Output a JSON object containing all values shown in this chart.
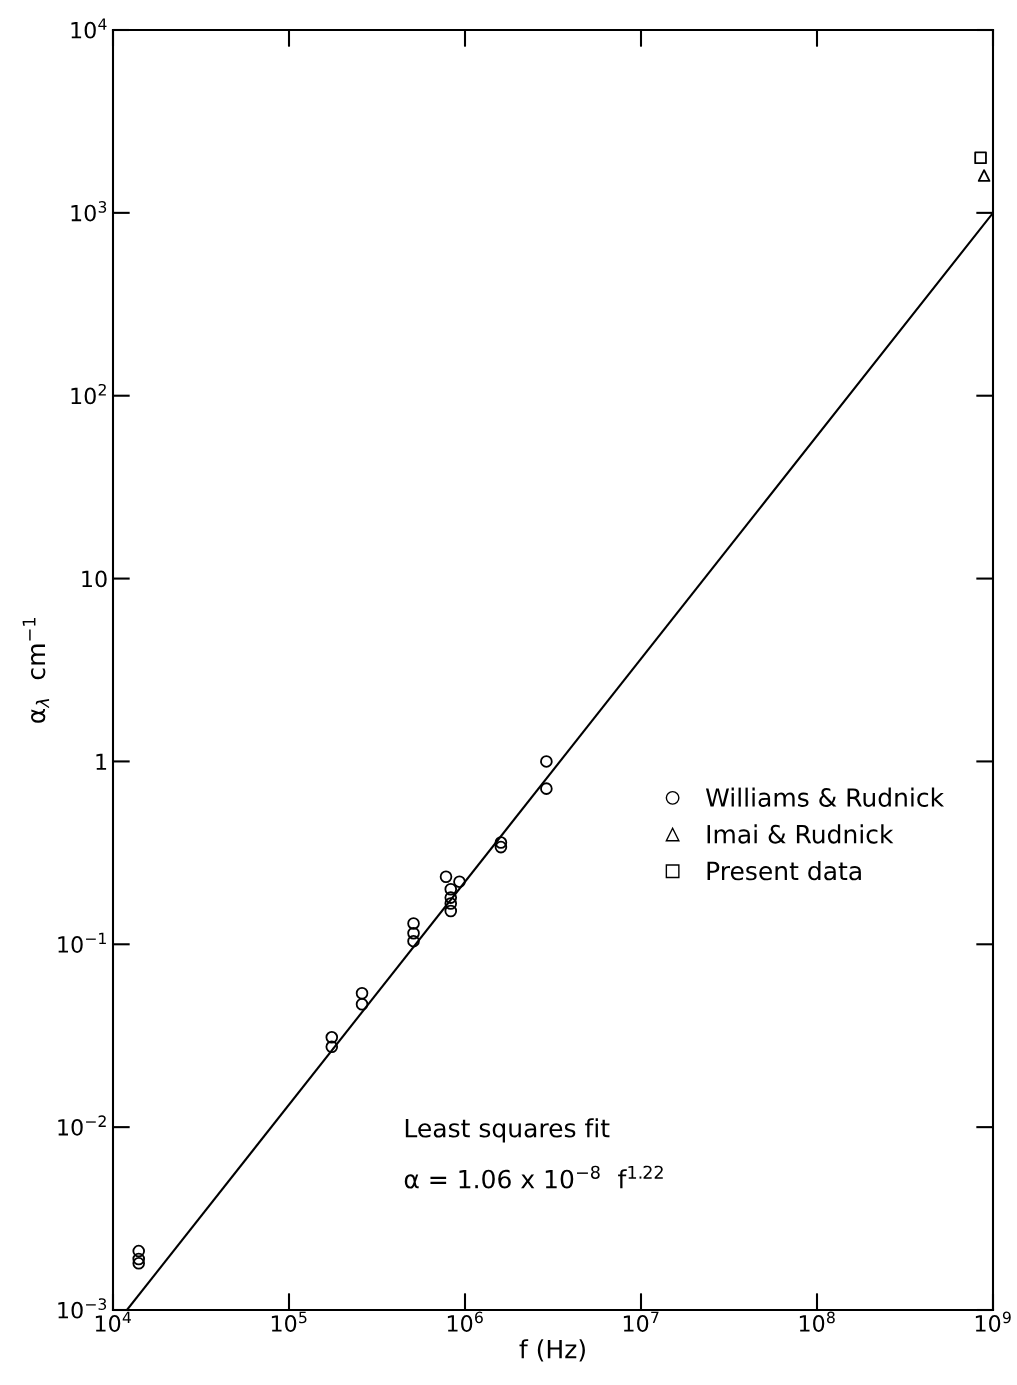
{
  "chart_data": {
    "type": "scatter",
    "xlabel": "f (Hz)",
    "ylabel": "α$_{λ}$  cm$^{−1}$",
    "log": "xy",
    "grid": false,
    "legend": "right",
    "xlim": [
      10000,
      1000000000
    ],
    "ylim": [
      0.001,
      10000
    ],
    "xticks": [
      {
        "value": 10000,
        "label": "10$^{4}$"
      },
      {
        "value": 100000,
        "label": "10$^{5}$"
      },
      {
        "value": 1000000,
        "label": "10$^{6}$"
      },
      {
        "value": 10000000,
        "label": "10$^{7}$"
      },
      {
        "value": 100000000,
        "label": "10$^{8}$"
      },
      {
        "value": 1000000000,
        "label": "10$^{9}$"
      }
    ],
    "yticks": [
      {
        "value": 0.001,
        "label": "10$^{−3}$"
      },
      {
        "value": 0.01,
        "label": "10$^{−2}$"
      },
      {
        "value": 0.1,
        "label": "10$^{−1}$"
      },
      1,
      10,
      {
        "value": 100,
        "label": "10$^{2}$"
      },
      {
        "value": 1000,
        "label": "10$^{3}$"
      },
      {
        "value": 10000,
        "label": "10$^{4}$"
      }
    ],
    "series": [
      {
        "name": "Williams & Rudnick",
        "color": "#000000",
        "marker": "circle",
        "x": [
          14000,
          14000,
          14000,
          175000,
          175000,
          260000,
          260000,
          510000,
          510000,
          510000,
          780000,
          830000,
          830000,
          830000,
          830000,
          930000,
          1600000,
          1600000,
          2900000,
          2900000
        ],
        "values": [
          0.0021,
          0.0019,
          0.0018,
          0.031,
          0.0275,
          0.054,
          0.047,
          0.13,
          0.115,
          0.104,
          0.234,
          0.2,
          0.18,
          0.167,
          0.152,
          0.22,
          0.36,
          0.34,
          1.0,
          0.71
        ]
      },
      {
        "name": "Imai & Rudnick",
        "color": "#000000",
        "marker": "triangle",
        "x": [
          890000000
        ],
        "values": [
          1600
        ]
      },
      {
        "name": "Present data",
        "color": "#000000",
        "marker": "square",
        "x": [
          850000000
        ],
        "values": [
          2000
        ]
      },
      {
        "type": "line",
        "color": "#000000",
        "line_style": "solid",
        "x": [
          12000,
          1000000000
        ],
        "values": [
          0.001,
          1000
        ]
      }
    ],
    "annotations": [
      "Least squares fit",
      "α = 1.06 x 10$^{−8}$  f$^{1.22}$"
    ]
  }
}
